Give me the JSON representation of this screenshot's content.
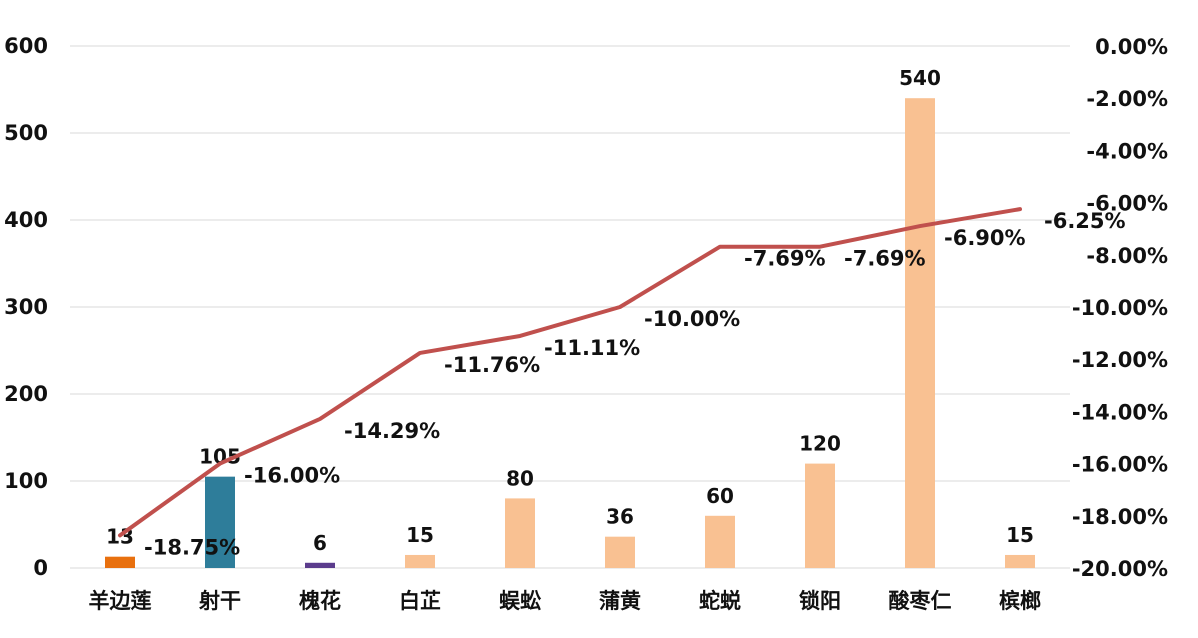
{
  "chart_data": {
    "type": "bar",
    "categories": [
      "羊边莲",
      "射干",
      "槐花",
      "白芷",
      "蜈蚣",
      "蒲黄",
      "蛇蜕",
      "锁阳",
      "酸枣仁",
      "槟榔"
    ],
    "series": [
      {
        "type": "bar",
        "axis": "left",
        "values": [
          13,
          105,
          6,
          15,
          80,
          36,
          60,
          120,
          540,
          15
        ],
        "value_labels": [
          "13",
          "105",
          "6",
          "15",
          "80",
          "36",
          "60",
          "120",
          "540",
          "15"
        ],
        "colors": [
          "#E8700F",
          "#2E7D9A",
          "#5B3C8C",
          "#F9C192",
          "#F9C192",
          "#F9C192",
          "#F9C192",
          "#F9C192",
          "#F9C192",
          "#F9C192"
        ]
      },
      {
        "type": "line",
        "axis": "right",
        "values": [
          -18.75,
          -16.0,
          -14.29,
          -11.76,
          -11.11,
          -10.0,
          -7.69,
          -7.69,
          -6.9,
          -6.25
        ],
        "value_labels": [
          "-18.75%",
          "-16.00%",
          "-14.29%",
          "-11.76%",
          "-11.11%",
          "-10.00%",
          "-7.69%",
          "-7.69%",
          "-6.90%",
          "-6.25%"
        ],
        "color": "#C0504D"
      }
    ],
    "y_left": {
      "ylim": [
        0,
        600
      ],
      "ticks": [
        0,
        100,
        200,
        300,
        400,
        500,
        600
      ],
      "tick_labels": [
        "0",
        "100",
        "200",
        "300",
        "400",
        "500",
        "600"
      ]
    },
    "y_right": {
      "ylim": [
        -20,
        0
      ],
      "ticks": [
        0,
        -2,
        -4,
        -6,
        -8,
        -10,
        -12,
        -14,
        -16,
        -18,
        -20
      ],
      "tick_labels": [
        "0.00%",
        "-2.00%",
        "-4.00%",
        "-6.00%",
        "-8.00%",
        "-10.00%",
        "-12.00%",
        "-14.00%",
        "-16.00%",
        "-18.00%",
        "-20.00%"
      ]
    },
    "grid": true,
    "gridline_color": "#D9D9D9",
    "legend": "none"
  }
}
